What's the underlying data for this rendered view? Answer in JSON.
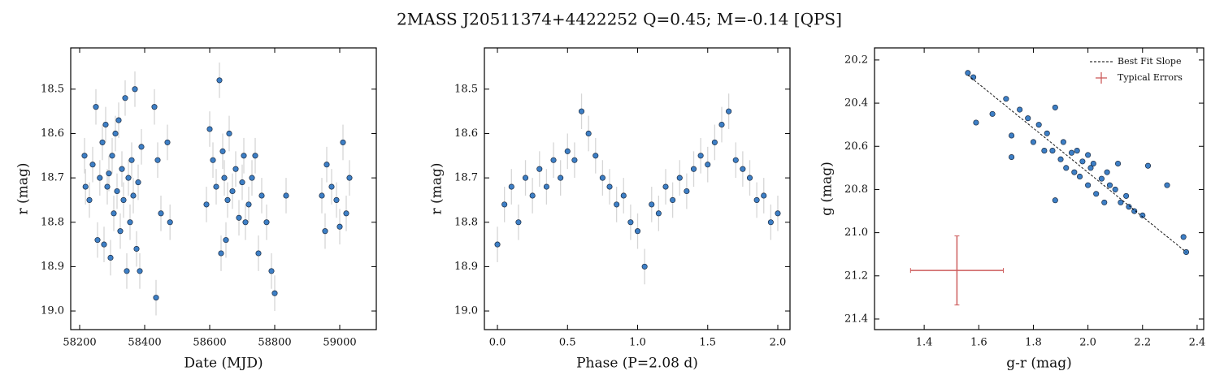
{
  "title": "2MASS J20511374+4422252  Q=0.45; M=-0.14 [QPS]",
  "chart_data": [
    {
      "type": "scatter",
      "x_label": "Date (MJD)",
      "y_label": "r (mag)",
      "xlim": [
        58172.5,
        59112.5
      ],
      "ylim": [
        19.042,
        18.407
      ],
      "xticks": [
        58200,
        58400,
        58600,
        58800,
        59000
      ],
      "yticks": [
        18.5,
        18.6,
        18.7,
        18.8,
        18.9,
        {
          "value": 19,
          "label": "19.0"
        }
      ],
      "series": [
        {
          "color": "#3d7fc6",
          "yerr": 0.04,
          "x": [
            58215,
            58218,
            58230,
            58240,
            58250,
            58255,
            58262,
            58270,
            58275,
            58280,
            58285,
            58290,
            58295,
            58300,
            58305,
            58310,
            58315,
            58320,
            58325,
            58330,
            58335,
            58340,
            58345,
            58350,
            58355,
            58360,
            58365,
            58370,
            58375,
            58380,
            58385,
            58390,
            58430,
            58435,
            58440,
            58450,
            58470,
            58478,
            58590,
            58600,
            58610,
            58620,
            58630,
            58635,
            58640,
            58645,
            58650,
            58655,
            58660,
            58670,
            58680,
            58690,
            58700,
            58705,
            58710,
            58720,
            58730,
            58740,
            58750,
            58760,
            58775,
            58790,
            58800,
            58835,
            58945,
            58955,
            58960,
            58975,
            58990,
            59000,
            59010,
            59020,
            59030
          ],
          "values": [
            18.65,
            18.72,
            18.75,
            18.67,
            18.54,
            18.84,
            18.7,
            18.62,
            18.85,
            18.58,
            18.72,
            18.69,
            18.88,
            18.65,
            18.78,
            18.6,
            18.73,
            18.57,
            18.82,
            18.68,
            18.75,
            18.52,
            18.91,
            18.7,
            18.8,
            18.66,
            18.74,
            18.5,
            18.86,
            18.71,
            18.91,
            18.63,
            18.54,
            18.97,
            18.66,
            18.78,
            18.62,
            18.8,
            18.76,
            18.59,
            18.66,
            18.72,
            18.48,
            18.87,
            18.64,
            18.7,
            18.84,
            18.75,
            18.6,
            18.73,
            18.68,
            18.79,
            18.71,
            18.65,
            18.8,
            18.76,
            18.7,
            18.65,
            18.87,
            18.74,
            18.8,
            18.91,
            18.96,
            18.74,
            18.74,
            18.82,
            18.67,
            18.72,
            18.75,
            18.81,
            18.62,
            18.78,
            18.7
          ]
        }
      ]
    },
    {
      "type": "scatter",
      "x_label": "Phase (P=2.08 d)",
      "y_label": "r (mag)",
      "xlim": [
        -0.093,
        2.087
      ],
      "ylim": [
        19.042,
        18.407
      ],
      "xticks": [
        {
          "value": 0,
          "label": "0.0"
        },
        0.5,
        {
          "value": 1,
          "label": "1.0"
        },
        1.5,
        {
          "value": 2,
          "label": "2.0"
        }
      ],
      "yticks": [
        18.5,
        18.6,
        18.7,
        18.8,
        18.9,
        {
          "value": 19,
          "label": "19.0"
        }
      ],
      "series": [
        {
          "color": "#3d7fc6",
          "yerr": 0.04,
          "x": [
            0,
            0.05,
            0.1,
            0.15,
            0.2,
            0.25,
            0.3,
            0.35,
            0.4,
            0.45,
            0.5,
            0.55,
            0.6,
            0.65,
            0.7,
            0.75,
            0.8,
            0.85,
            0.9,
            0.95,
            1,
            1.05,
            1.1,
            1.15,
            1.2,
            1.25,
            1.3,
            1.35,
            1.4,
            1.45,
            1.5,
            1.55,
            1.6,
            1.65,
            1.7,
            1.75,
            1.8,
            1.85,
            1.9,
            1.95,
            2
          ],
          "values": [
            18.85,
            18.76,
            18.72,
            18.8,
            18.7,
            18.74,
            18.68,
            18.72,
            18.66,
            18.7,
            18.64,
            18.66,
            18.55,
            18.6,
            18.65,
            18.7,
            18.72,
            18.76,
            18.74,
            18.8,
            18.82,
            18.9,
            18.76,
            18.78,
            18.72,
            18.75,
            18.7,
            18.73,
            18.68,
            18.65,
            18.67,
            18.62,
            18.58,
            18.55,
            18.66,
            18.68,
            18.7,
            18.75,
            18.74,
            18.8,
            18.78
          ]
        }
      ]
    },
    {
      "type": "scatter",
      "x_label": "g-r (mag)",
      "y_label": "g (mag)",
      "xlim": [
        1.218,
        2.424
      ],
      "ylim": [
        21.449,
        20.144
      ],
      "xticks": [
        1.4,
        1.6,
        1.8,
        {
          "value": 2,
          "label": "2.0"
        },
        2.2,
        2.4
      ],
      "yticks": [
        20.2,
        20.4,
        20.6,
        20.8,
        {
          "value": 21,
          "label": "21.0"
        },
        21.2,
        21.4
      ],
      "series": [
        {
          "color": "#3d7fc6",
          "x": [
            1.56,
            1.58,
            1.59,
            1.65,
            1.7,
            1.72,
            1.75,
            1.78,
            1.8,
            1.82,
            1.84,
            1.85,
            1.87,
            1.88,
            1.9,
            1.91,
            1.92,
            1.94,
            1.95,
            1.96,
            1.97,
            1.98,
            2,
            2.01,
            2.02,
            2.03,
            2.05,
            2.06,
            2.07,
            2.08,
            2.1,
            2.11,
            2.12,
            2.14,
            2.15,
            2.17,
            2.2,
            2.22,
            2.29,
            2.35,
            2.36,
            1.88,
            1.72,
            2
          ],
          "values": [
            20.26,
            20.28,
            20.49,
            20.45,
            20.38,
            20.55,
            20.43,
            20.47,
            20.58,
            20.5,
            20.62,
            20.54,
            20.62,
            20.42,
            20.66,
            20.58,
            20.7,
            20.63,
            20.72,
            20.62,
            20.74,
            20.67,
            20.78,
            20.7,
            20.68,
            20.82,
            20.75,
            20.86,
            20.72,
            20.78,
            20.8,
            20.68,
            20.86,
            20.83,
            20.88,
            20.9,
            20.92,
            20.69,
            20.78,
            21.02,
            21.09,
            20.85,
            20.65,
            20.64
          ]
        }
      ],
      "fit": {
        "name": "Best Fit Slope",
        "color": "#000000",
        "x": [
          1.56,
          2.36
        ],
        "values": [
          20.27,
          21.09
        ]
      },
      "typical_errors": {
        "name": "Typical Errors",
        "color": "#cd5c5c",
        "x": 1.52,
        "y": 21.175,
        "xerr": 0.17,
        "yerr": 0.16
      },
      "legend": "upper right"
    }
  ]
}
